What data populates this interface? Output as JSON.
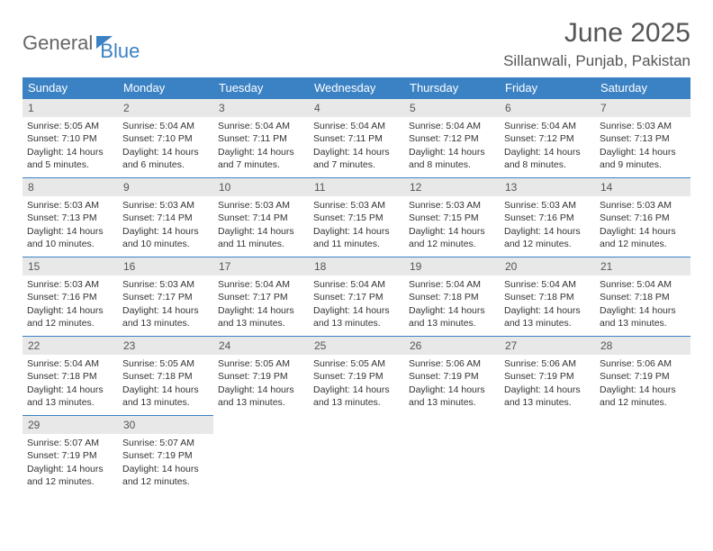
{
  "logo": {
    "part1": "General",
    "part2": "Blue"
  },
  "title": "June 2025",
  "location": "Sillanwali, Punjab, Pakistan",
  "colors": {
    "header_bg": "#3b82c4",
    "daynum_bg": "#e8e8e8",
    "text": "#333333",
    "title_text": "#555555",
    "logo_gray": "#666666",
    "logo_blue": "#3b82c4",
    "background": "#ffffff"
  },
  "typography": {
    "title_fontsize": 30,
    "location_fontsize": 17,
    "header_fontsize": 13,
    "daynum_fontsize": 12,
    "cell_fontsize": 10.5
  },
  "weekdays": [
    "Sunday",
    "Monday",
    "Tuesday",
    "Wednesday",
    "Thursday",
    "Friday",
    "Saturday"
  ],
  "weeks": [
    [
      {
        "n": "1",
        "sunrise": "5:05 AM",
        "sunset": "7:10 PM",
        "day_h": 14,
        "day_m": 5
      },
      {
        "n": "2",
        "sunrise": "5:04 AM",
        "sunset": "7:10 PM",
        "day_h": 14,
        "day_m": 6
      },
      {
        "n": "3",
        "sunrise": "5:04 AM",
        "sunset": "7:11 PM",
        "day_h": 14,
        "day_m": 7
      },
      {
        "n": "4",
        "sunrise": "5:04 AM",
        "sunset": "7:11 PM",
        "day_h": 14,
        "day_m": 7
      },
      {
        "n": "5",
        "sunrise": "5:04 AM",
        "sunset": "7:12 PM",
        "day_h": 14,
        "day_m": 8
      },
      {
        "n": "6",
        "sunrise": "5:04 AM",
        "sunset": "7:12 PM",
        "day_h": 14,
        "day_m": 8
      },
      {
        "n": "7",
        "sunrise": "5:03 AM",
        "sunset": "7:13 PM",
        "day_h": 14,
        "day_m": 9
      }
    ],
    [
      {
        "n": "8",
        "sunrise": "5:03 AM",
        "sunset": "7:13 PM",
        "day_h": 14,
        "day_m": 10
      },
      {
        "n": "9",
        "sunrise": "5:03 AM",
        "sunset": "7:14 PM",
        "day_h": 14,
        "day_m": 10
      },
      {
        "n": "10",
        "sunrise": "5:03 AM",
        "sunset": "7:14 PM",
        "day_h": 14,
        "day_m": 11
      },
      {
        "n": "11",
        "sunrise": "5:03 AM",
        "sunset": "7:15 PM",
        "day_h": 14,
        "day_m": 11
      },
      {
        "n": "12",
        "sunrise": "5:03 AM",
        "sunset": "7:15 PM",
        "day_h": 14,
        "day_m": 12
      },
      {
        "n": "13",
        "sunrise": "5:03 AM",
        "sunset": "7:16 PM",
        "day_h": 14,
        "day_m": 12
      },
      {
        "n": "14",
        "sunrise": "5:03 AM",
        "sunset": "7:16 PM",
        "day_h": 14,
        "day_m": 12
      }
    ],
    [
      {
        "n": "15",
        "sunrise": "5:03 AM",
        "sunset": "7:16 PM",
        "day_h": 14,
        "day_m": 12
      },
      {
        "n": "16",
        "sunrise": "5:03 AM",
        "sunset": "7:17 PM",
        "day_h": 14,
        "day_m": 13
      },
      {
        "n": "17",
        "sunrise": "5:04 AM",
        "sunset": "7:17 PM",
        "day_h": 14,
        "day_m": 13
      },
      {
        "n": "18",
        "sunrise": "5:04 AM",
        "sunset": "7:17 PM",
        "day_h": 14,
        "day_m": 13
      },
      {
        "n": "19",
        "sunrise": "5:04 AM",
        "sunset": "7:18 PM",
        "day_h": 14,
        "day_m": 13
      },
      {
        "n": "20",
        "sunrise": "5:04 AM",
        "sunset": "7:18 PM",
        "day_h": 14,
        "day_m": 13
      },
      {
        "n": "21",
        "sunrise": "5:04 AM",
        "sunset": "7:18 PM",
        "day_h": 14,
        "day_m": 13
      }
    ],
    [
      {
        "n": "22",
        "sunrise": "5:04 AM",
        "sunset": "7:18 PM",
        "day_h": 14,
        "day_m": 13
      },
      {
        "n": "23",
        "sunrise": "5:05 AM",
        "sunset": "7:18 PM",
        "day_h": 14,
        "day_m": 13
      },
      {
        "n": "24",
        "sunrise": "5:05 AM",
        "sunset": "7:19 PM",
        "day_h": 14,
        "day_m": 13
      },
      {
        "n": "25",
        "sunrise": "5:05 AM",
        "sunset": "7:19 PM",
        "day_h": 14,
        "day_m": 13
      },
      {
        "n": "26",
        "sunrise": "5:06 AM",
        "sunset": "7:19 PM",
        "day_h": 14,
        "day_m": 13
      },
      {
        "n": "27",
        "sunrise": "5:06 AM",
        "sunset": "7:19 PM",
        "day_h": 14,
        "day_m": 13
      },
      {
        "n": "28",
        "sunrise": "5:06 AM",
        "sunset": "7:19 PM",
        "day_h": 14,
        "day_m": 12
      }
    ],
    [
      {
        "n": "29",
        "sunrise": "5:07 AM",
        "sunset": "7:19 PM",
        "day_h": 14,
        "day_m": 12
      },
      {
        "n": "30",
        "sunrise": "5:07 AM",
        "sunset": "7:19 PM",
        "day_h": 14,
        "day_m": 12
      },
      null,
      null,
      null,
      null,
      null
    ]
  ],
  "labels": {
    "sunrise": "Sunrise:",
    "sunset": "Sunset:",
    "daylight": "Daylight:",
    "hours": "hours",
    "and": "and",
    "minutes": "minutes."
  }
}
